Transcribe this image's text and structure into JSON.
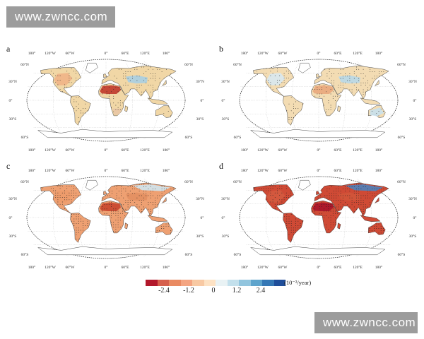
{
  "watermark": {
    "top": "www.zwncc.com",
    "bottom": "www.zwncc.com"
  },
  "colors": {
    "ocean": "#ffffff",
    "coast": "#333333",
    "grid": "#bdbdbd",
    "dots": "#222222",
    "colorbar": [
      "#b2182b",
      "#d6604d",
      "#e98a62",
      "#f4a582",
      "#f8c9a3",
      "#fde2c4",
      "#e9f2f4",
      "#c3e0ec",
      "#92c5de",
      "#5ea4cc",
      "#3578b5",
      "#1f4e9a"
    ]
  },
  "panels": [
    {
      "letter": "a",
      "top_longitudes": [
        "180°",
        "120°W",
        "60°W",
        "0°",
        "60°E",
        "120°E",
        "180°"
      ],
      "bottom_longitudes": [
        "180°",
        "120°W",
        "60°W",
        "0°",
        "60°E",
        "120°E",
        "180°"
      ],
      "latitudes_left": [
        "60°N",
        "30°N",
        "0°",
        "30°S",
        "60°S"
      ],
      "latitudes_right": [
        "60°N",
        "30°N",
        "0°",
        "30°S",
        "60°S"
      ],
      "land_fill": "#f1d7a6",
      "accents": [
        {
          "region": "sahara",
          "color": "#c0392b"
        },
        {
          "region": "north-america",
          "color": "#efb487"
        },
        {
          "region": "central-asia",
          "color": "#a8cfe3"
        },
        {
          "region": "southern-africa",
          "color": "#e9c6a5"
        }
      ]
    },
    {
      "letter": "b",
      "top_longitudes": [
        "180°",
        "120°W",
        "60°W",
        "0°",
        "60°E",
        "120°E",
        "180°"
      ],
      "bottom_longitudes": [
        "180°",
        "120°W",
        "60°W",
        "0°",
        "60°E",
        "120°E",
        "180°"
      ],
      "latitudes_left": [
        "60°N",
        "30°N",
        "0°",
        "30°S",
        "60°S"
      ],
      "latitudes_right": [
        "60°N",
        "30°N",
        "0°",
        "30°S",
        "60°S"
      ],
      "land_fill": "#f3dcb3",
      "accents": [
        {
          "region": "sahara",
          "color": "#e9a77c"
        },
        {
          "region": "north-america",
          "color": "#d8e8ef"
        },
        {
          "region": "central-asia",
          "color": "#b8d8e8"
        },
        {
          "region": "australia",
          "color": "#c8e0ec"
        }
      ]
    },
    {
      "letter": "c",
      "top_longitudes": [
        "180°",
        "120°W",
        "60°W",
        "0°",
        "60°E",
        "120°E",
        "180°"
      ],
      "bottom_longitudes": [
        "180°",
        "120°W",
        "60°W",
        "0°",
        "60°E",
        "120°E",
        "180°"
      ],
      "latitudes_left": [
        "60°N",
        "30°N",
        "0°",
        "30°S",
        "60°S"
      ],
      "latitudes_right": [
        "60°N",
        "30°N",
        "0°",
        "30°S",
        "60°S"
      ],
      "land_fill": "#eea072",
      "accents": [
        {
          "region": "sahara",
          "color": "#c8452e"
        },
        {
          "region": "north-america",
          "color": "#ec9a6a"
        },
        {
          "region": "central-asia",
          "color": "#e28f62"
        },
        {
          "region": "siberia",
          "color": "#cfe4ee"
        }
      ]
    },
    {
      "letter": "d",
      "top_longitudes": [
        "180°",
        "120°W",
        "60°W",
        "0°",
        "60°E",
        "120°E",
        "180°"
      ],
      "bottom_longitudes": [
        "180°",
        "120°W",
        "60°W",
        "0°",
        "60°E",
        "120°E",
        "180°"
      ],
      "latitudes_left": [
        "60°N",
        "30°N",
        "0°",
        "30°S",
        "60°S"
      ],
      "latitudes_right": [
        "60°N",
        "30°N",
        "0°",
        "30°S",
        "60°S"
      ],
      "land_fill": "#cf4a35",
      "accents": [
        {
          "region": "sahara",
          "color": "#a8142a"
        },
        {
          "region": "north-america",
          "color": "#d35a3f"
        },
        {
          "region": "central-asia",
          "color": "#d0553a"
        },
        {
          "region": "siberia",
          "color": "#4d82bd"
        }
      ]
    }
  ],
  "colorbar": {
    "tick_labels": [
      "-2.4",
      "-1.2",
      "0",
      "1.2",
      "2.4"
    ],
    "unit": "(10⁻²/year)"
  }
}
